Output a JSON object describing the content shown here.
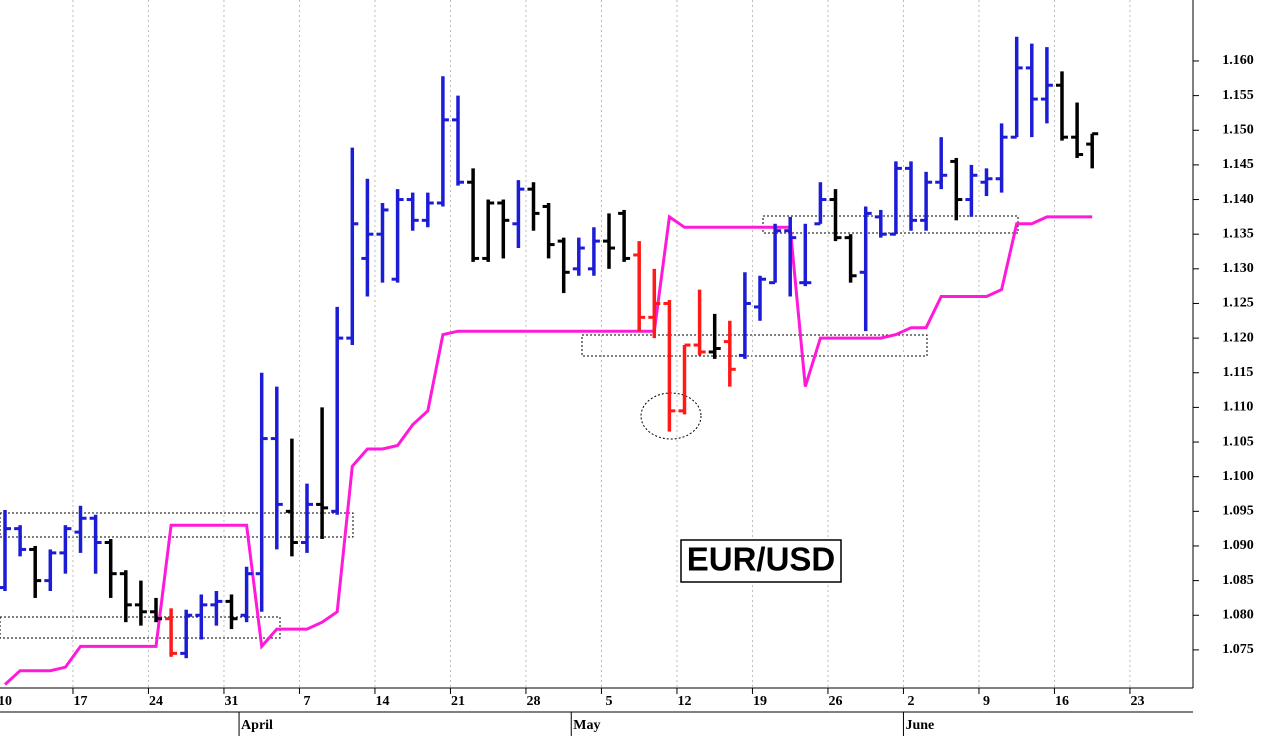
{
  "chart_data": {
    "type": "ohlc",
    "title": "EUR/USD",
    "categories": [
      "10",
      null,
      null,
      null,
      null,
      "17",
      null,
      null,
      null,
      null,
      "24",
      null,
      null,
      null,
      null,
      "31",
      null,
      null,
      null,
      null,
      "7",
      null,
      null,
      null,
      null,
      "14",
      null,
      null,
      null,
      null,
      "21",
      null,
      null,
      null,
      null,
      "28",
      null,
      null,
      null,
      null,
      "5",
      null,
      null,
      null,
      null,
      "12",
      null,
      null,
      null,
      null,
      "19",
      null,
      null,
      null,
      null,
      "26",
      null,
      null,
      null,
      null,
      "2",
      null,
      null,
      null,
      null,
      "9",
      null,
      null,
      null,
      null,
      "16",
      null,
      null,
      null,
      null,
      "23",
      null
    ],
    "months": [
      null,
      null,
      null,
      null,
      null,
      null,
      null,
      null,
      null,
      null,
      null,
      null,
      null,
      null,
      null,
      null,
      "April",
      null,
      null,
      null,
      null,
      null,
      null,
      null,
      null,
      null,
      null,
      null,
      null,
      null,
      null,
      null,
      null,
      null,
      null,
      null,
      null,
      null,
      "May",
      null,
      null,
      null,
      null,
      null,
      null,
      null,
      null,
      null,
      null,
      null,
      null,
      null,
      null,
      null,
      null,
      null,
      null,
      null,
      null,
      null,
      "June",
      null,
      null,
      null,
      null,
      null,
      null,
      null,
      null,
      null,
      null,
      null,
      null,
      null,
      null,
      null,
      null
    ],
    "open": [
      1.084,
      1.0925,
      1.0895,
      1.085,
      1.089,
      1.092,
      1.094,
      1.0905,
      1.086,
      1.0815,
      1.0805,
      1.0795,
      1.0745,
      1.08,
      1.0815,
      1.082,
      1.08,
      1.086,
      1.1055,
      1.095,
      1.0905,
      1.096,
      1.095,
      1.12,
      1.1315,
      1.135,
      1.1285,
      1.14,
      1.137,
      1.1395,
      1.1515,
      1.1425,
      1.1315,
      1.1395,
      1.1365,
      1.1415,
      1.139,
      1.134,
      1.13,
      1.13,
      1.134,
      1.138,
      1.132,
      1.123,
      1.125,
      1.1095,
      1.119,
      1.118,
      1.1195,
      1.1175,
      1.1245,
      1.128,
      1.1355,
      1.128,
      1.1365,
      1.14,
      1.1345,
      1.1295,
      1.1375,
      1.135,
      1.1445,
      1.137,
      1.1425,
      1.1455,
      1.14,
      1.1425,
      1.143,
      1.149,
      1.159,
      1.1545,
      1.1565,
      1.149,
      1.148,
      null,
      null,
      null,
      null
    ],
    "high": [
      1.0952,
      1.093,
      1.09,
      1.0895,
      1.093,
      1.0958,
      1.0945,
      1.091,
      1.0865,
      1.085,
      1.0825,
      1.081,
      1.0808,
      1.083,
      1.0835,
      1.083,
      1.087,
      1.115,
      1.113,
      1.1055,
      1.099,
      1.11,
      1.1245,
      1.1475,
      1.143,
      1.1395,
      1.1415,
      1.141,
      1.141,
      1.1578,
      1.155,
      1.1445,
      1.14,
      1.14,
      1.1428,
      1.1425,
      1.1395,
      1.1345,
      1.1345,
      1.136,
      1.138,
      1.1385,
      1.134,
      1.13,
      1.1255,
      1.119,
      1.127,
      1.1235,
      1.1225,
      1.1295,
      1.129,
      1.1365,
      1.1375,
      1.1365,
      1.1425,
      1.1415,
      1.135,
      1.139,
      1.1385,
      1.1455,
      1.1455,
      1.144,
      1.149,
      1.146,
      1.145,
      1.1445,
      1.151,
      1.1635,
      1.1625,
      1.162,
      1.1585,
      1.154,
      1.1495,
      null,
      null,
      null,
      null
    ],
    "low": [
      1.0835,
      1.0885,
      1.0825,
      1.0835,
      1.086,
      1.089,
      1.086,
      1.0825,
      1.079,
      1.0785,
      1.079,
      1.074,
      1.0738,
      1.0765,
      1.0785,
      1.078,
      1.079,
      1.0805,
      1.0895,
      1.0885,
      1.089,
      1.091,
      1.0945,
      1.119,
      1.126,
      1.128,
      1.128,
      1.1355,
      1.136,
      1.139,
      1.142,
      1.131,
      1.131,
      1.1315,
      1.133,
      1.1355,
      1.1315,
      1.1265,
      1.129,
      1.129,
      1.13,
      1.131,
      1.121,
      1.12,
      1.1065,
      1.109,
      1.1175,
      1.117,
      1.113,
      1.117,
      1.1225,
      1.128,
      1.126,
      1.1275,
      1.1365,
      1.134,
      1.128,
      1.121,
      1.1345,
      1.135,
      1.1355,
      1.1355,
      1.1415,
      1.137,
      1.1375,
      1.1405,
      1.141,
      1.149,
      1.149,
      1.151,
      1.1485,
      1.146,
      1.1445,
      null,
      null,
      null,
      null
    ],
    "close": [
      1.0925,
      1.0895,
      1.085,
      1.089,
      1.0925,
      1.094,
      1.0905,
      1.086,
      1.0815,
      1.0805,
      1.0795,
      1.0745,
      1.08,
      1.0815,
      1.082,
      1.0795,
      1.086,
      1.1055,
      1.096,
      1.0905,
      1.096,
      1.0955,
      1.12,
      1.1365,
      1.135,
      1.1385,
      1.14,
      1.137,
      1.1395,
      1.1515,
      1.1425,
      1.1315,
      1.1395,
      1.137,
      1.1415,
      1.138,
      1.1335,
      1.1295,
      1.133,
      1.134,
      1.133,
      1.1315,
      1.123,
      1.125,
      1.1095,
      1.119,
      1.118,
      1.1185,
      1.1155,
      1.125,
      1.1285,
      1.1355,
      1.1345,
      1.128,
      1.14,
      1.1345,
      1.129,
      1.138,
      1.135,
      1.1445,
      1.137,
      1.1425,
      1.1435,
      1.14,
      1.1435,
      1.143,
      1.149,
      1.159,
      1.1545,
      1.1565,
      1.149,
      1.1465,
      1.1495,
      null,
      null,
      null,
      null
    ],
    "bar_colors": [
      "#1c1cd6",
      "#1c1cd6",
      "#000000",
      "#1c1cd6",
      "#1c1cd6",
      "#1c1cd6",
      "#1c1cd6",
      "#000000",
      "#000000",
      "#000000",
      "#000000",
      "#ff1a1a",
      "#1c1cd6",
      "#1c1cd6",
      "#1c1cd6",
      "#000000",
      "#1c1cd6",
      "#1c1cd6",
      "#1c1cd6",
      "#000000",
      "#1c1cd6",
      "#000000",
      "#1c1cd6",
      "#1c1cd6",
      "#1c1cd6",
      "#1c1cd6",
      "#1c1cd6",
      "#1c1cd6",
      "#1c1cd6",
      "#1c1cd6",
      "#1c1cd6",
      "#000000",
      "#000000",
      "#000000",
      "#1c1cd6",
      "#000000",
      "#000000",
      "#000000",
      "#1c1cd6",
      "#1c1cd6",
      "#000000",
      "#000000",
      "#ff1a1a",
      "#ff1a1a",
      "#ff1a1a",
      "#ff1a1a",
      "#ff1a1a",
      "#000000",
      "#ff1a1a",
      "#1c1cd6",
      "#1c1cd6",
      "#1c1cd6",
      "#1c1cd6",
      "#1c1cd6",
      "#1c1cd6",
      "#000000",
      "#000000",
      "#1c1cd6",
      "#1c1cd6",
      "#1c1cd6",
      "#1c1cd6",
      "#1c1cd6",
      "#1c1cd6",
      "#000000",
      "#1c1cd6",
      "#1c1cd6",
      "#1c1cd6",
      "#1c1cd6",
      "#1c1cd6",
      "#1c1cd6",
      "#000000",
      "#000000",
      "#000000",
      null,
      null,
      null,
      null
    ],
    "lines": [
      {
        "color": "#ff1ad9",
        "values": [
          1.07,
          1.072,
          1.072,
          1.072,
          1.0725,
          1.0755,
          1.0755,
          1.0755,
          1.0755,
          1.0755,
          1.0755,
          1.093,
          1.093,
          1.093,
          1.093,
          1.093,
          1.093,
          1.0755,
          1.078,
          1.078,
          1.078,
          1.079,
          1.0805,
          1.1015,
          1.104,
          1.104,
          1.1045,
          1.1075,
          1.1095,
          1.1205,
          1.121,
          1.121,
          1.121,
          1.121,
          1.121,
          1.121,
          1.121,
          1.121,
          1.121,
          1.121,
          1.121,
          1.121,
          1.121,
          1.121,
          1.1375,
          1.136,
          1.136,
          1.136,
          1.136,
          1.136,
          1.136,
          1.136,
          1.136,
          1.113,
          1.12,
          1.12,
          1.12,
          1.12,
          1.12,
          1.1205,
          1.1215,
          1.1215,
          1.126,
          1.126,
          1.126,
          1.126,
          1.127,
          1.1365,
          1.1365,
          1.1375,
          1.1375,
          1.1375,
          1.1375,
          null,
          null,
          null,
          null
        ]
      }
    ],
    "ylim": [
      1.0695,
      1.1688
    ],
    "yticks": [
      {
        "value": 1.075,
        "label": "1.075"
      },
      {
        "value": 1.08,
        "label": "1.080"
      },
      {
        "value": 1.085,
        "label": "1.085"
      },
      {
        "value": 1.09,
        "label": "1.090"
      },
      {
        "value": 1.095,
        "label": "1.095"
      },
      {
        "value": 1.1,
        "label": "1.100"
      },
      {
        "value": 1.105,
        "label": "1.105"
      },
      {
        "value": 1.11,
        "label": "1.110"
      },
      {
        "value": 1.115,
        "label": "1.115"
      },
      {
        "value": 1.12,
        "label": "1.120"
      },
      {
        "value": 1.125,
        "label": "1.125"
      },
      {
        "value": 1.13,
        "label": "1.130"
      },
      {
        "value": 1.135,
        "label": "1.135"
      },
      {
        "value": 1.14,
        "label": "1.140"
      },
      {
        "value": 1.145,
        "label": "1.145"
      },
      {
        "value": 1.15,
        "label": "1.150"
      },
      {
        "value": 1.155,
        "label": "1.155"
      },
      {
        "value": 1.16,
        "label": "1.160"
      }
    ],
    "y_axis_side": "right",
    "grid": true
  }
}
